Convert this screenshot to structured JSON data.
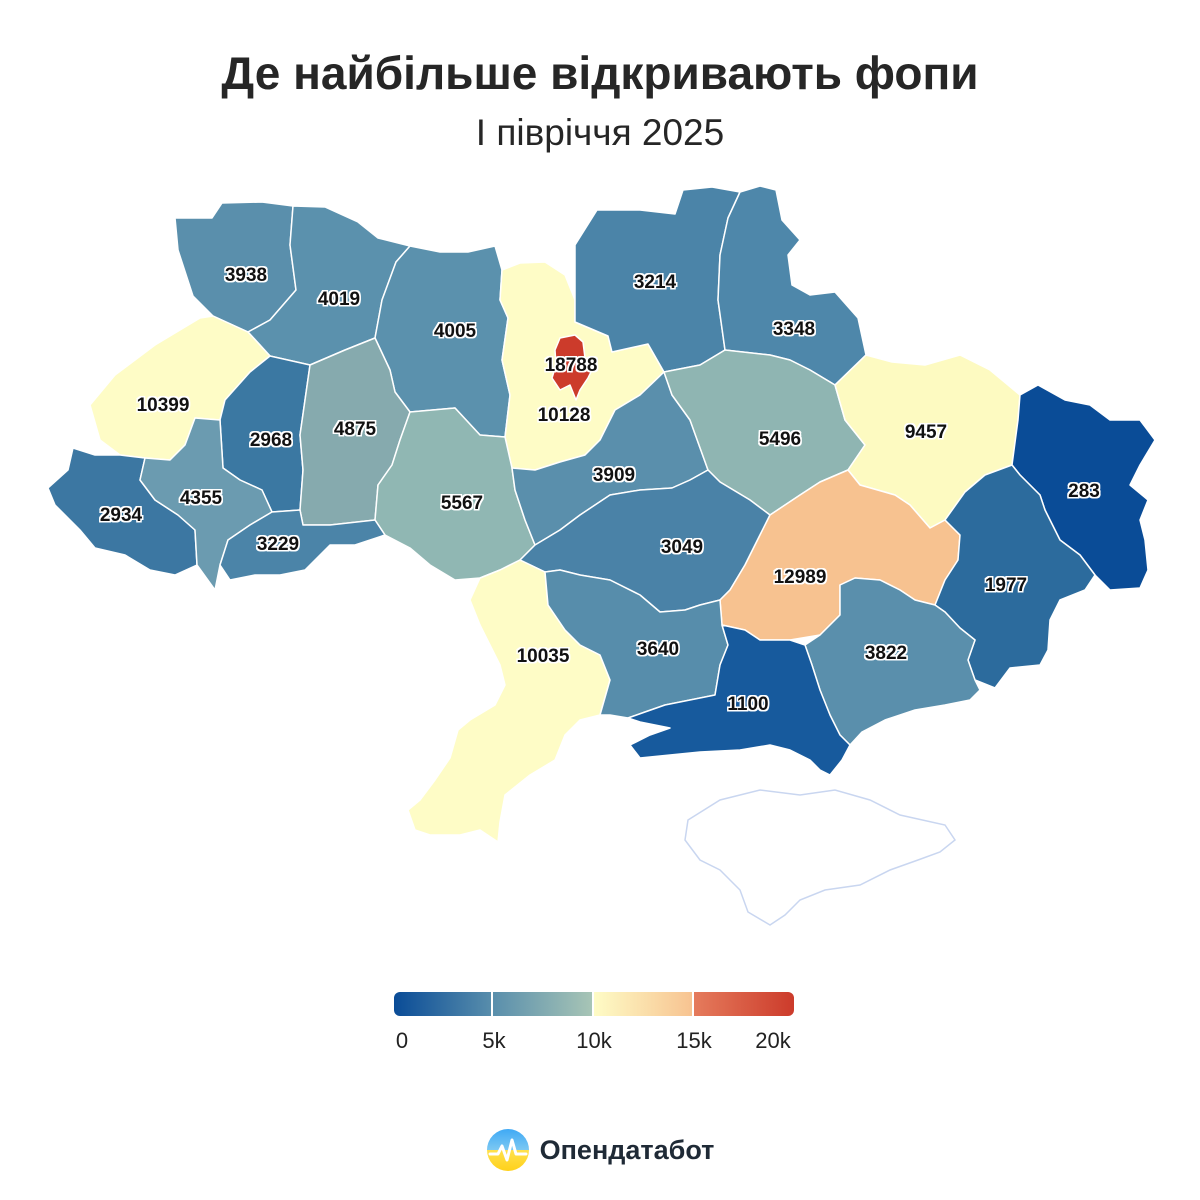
{
  "header": {
    "title": "Де найбільше відкривають фопи",
    "subtitle": "І півріччя 2025"
  },
  "map": {
    "regions": [
      {
        "id": "volyn",
        "value": 3938,
        "color": "#5a8fac"
      },
      {
        "id": "rivne",
        "value": 4019,
        "color": "#5b91ad"
      },
      {
        "id": "zhytomyr",
        "value": 4005,
        "color": "#5b91ad"
      },
      {
        "id": "kyiv-oblast",
        "value": 10128,
        "color": "#fefcc6"
      },
      {
        "id": "kyiv-city",
        "value": 18788,
        "color": "#cc3b2b"
      },
      {
        "id": "chernihiv",
        "value": 3214,
        "color": "#4b84a8"
      },
      {
        "id": "sumy",
        "value": 3348,
        "color": "#4e87aa"
      },
      {
        "id": "lviv",
        "value": 10399,
        "color": "#fefcc6"
      },
      {
        "id": "ternopil",
        "value": 2968,
        "color": "#3b78a2"
      },
      {
        "id": "khmelnytskyi",
        "value": 4875,
        "color": "#86aaae"
      },
      {
        "id": "vinnytsia",
        "value": 5567,
        "color": "#90b7b3"
      },
      {
        "id": "cherkasy",
        "value": 3909,
        "color": "#5a8fac"
      },
      {
        "id": "poltava",
        "value": 5496,
        "color": "#8fb5b2"
      },
      {
        "id": "kharkiv",
        "value": 9457,
        "color": "#fdfac1"
      },
      {
        "id": "luhansk",
        "value": 283,
        "color": "#0a4c97"
      },
      {
        "id": "zakarpattia",
        "value": 2934,
        "color": "#3c77a2"
      },
      {
        "id": "ivano-frankivsk",
        "value": 4355,
        "color": "#6b9bb0"
      },
      {
        "id": "chernivtsi",
        "value": 3229,
        "color": "#4b84a8"
      },
      {
        "id": "kirovohrad",
        "value": 3049,
        "color": "#4a82a7"
      },
      {
        "id": "dnipropetrovsk",
        "value": 12989,
        "color": "#f7c290"
      },
      {
        "id": "donetsk",
        "value": 1977,
        "color": "#2c6b9d"
      },
      {
        "id": "odesa",
        "value": 10035,
        "color": "#fefcc6"
      },
      {
        "id": "mykolaiv",
        "value": 3640,
        "color": "#578dab"
      },
      {
        "id": "zaporizhzhia",
        "value": 3822,
        "color": "#5a8fac"
      },
      {
        "id": "kherson",
        "value": 1100,
        "color": "#175a9d"
      }
    ],
    "crimea_fill": "#ffffff"
  },
  "legend": {
    "scale": [
      0,
      20000
    ],
    "ticks": [
      "0",
      "5k",
      "10k",
      "15k",
      "20k"
    ],
    "colors": [
      "#0a4c97",
      "#5a8fac",
      "#a9c6b6",
      "#fefcc6",
      "#f7c290",
      "#e57b5c",
      "#cc3b2b"
    ]
  },
  "footer": {
    "brand": "Опендатабот"
  }
}
